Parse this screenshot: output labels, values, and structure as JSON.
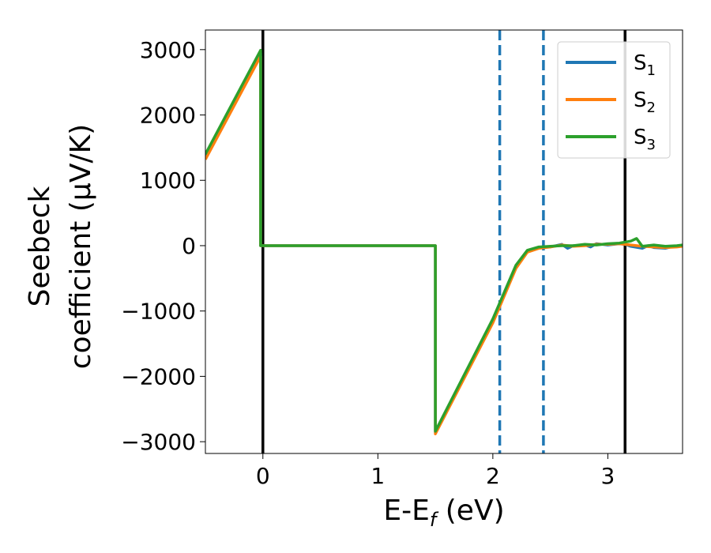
{
  "chart_data": {
    "type": "line",
    "title": "",
    "xlabel": "E-Ef (eV)",
    "xlabel_main": "E-E",
    "xlabel_sub": "f",
    "xlabel_unit": " (eV)",
    "ylabel": "Seebeck coefficient (μV/K)",
    "ylabel_line1": "Seebeck",
    "ylabel_line2": "coefficient  (μV/K)",
    "xlim": [
      -0.5,
      3.65
    ],
    "ylim": [
      -3180,
      3300
    ],
    "xticks": [
      0,
      1,
      2,
      3
    ],
    "xtick_labels": [
      "0",
      "1",
      "2",
      "3"
    ],
    "yticks": [
      3000,
      2000,
      1000,
      0,
      -1000,
      -2000,
      -3000
    ],
    "ytick_labels": [
      "3000",
      "2000",
      "1000",
      "0",
      "−1000",
      "−2000",
      "−3000"
    ],
    "grid": false,
    "legend_position": "top-right",
    "vlines": [
      {
        "x": 0.0,
        "style": "solid",
        "color": "#000000"
      },
      {
        "x": 3.15,
        "style": "solid",
        "color": "#000000"
      },
      {
        "x": 2.06,
        "style": "dashed",
        "color": "#1f77b4"
      },
      {
        "x": 2.44,
        "style": "dashed",
        "color": "#1f77b4"
      }
    ],
    "series": [
      {
        "name": "S1",
        "legend_main": "S",
        "legend_sub": "1",
        "color": "#1f77b4",
        "points": [
          [
            -0.5,
            1360
          ],
          [
            -0.02,
            2950
          ],
          [
            -0.02,
            0
          ],
          [
            1.5,
            0
          ],
          [
            1.5,
            -2860
          ],
          [
            2.0,
            -1150
          ],
          [
            2.2,
            -330
          ],
          [
            2.3,
            -90
          ],
          [
            2.4,
            -30
          ],
          [
            2.5,
            -20
          ],
          [
            2.6,
            20
          ],
          [
            2.65,
            -40
          ],
          [
            2.7,
            0
          ],
          [
            2.8,
            10
          ],
          [
            2.85,
            -20
          ],
          [
            2.9,
            30
          ],
          [
            3.0,
            10
          ],
          [
            3.1,
            30
          ],
          [
            3.15,
            20
          ],
          [
            3.2,
            -10
          ],
          [
            3.3,
            -40
          ],
          [
            3.35,
            0
          ],
          [
            3.4,
            -30
          ],
          [
            3.5,
            -40
          ],
          [
            3.55,
            -20
          ],
          [
            3.6,
            -10
          ],
          [
            3.65,
            -10
          ]
        ]
      },
      {
        "name": "S2",
        "legend_main": "S",
        "legend_sub": "2",
        "color": "#ff7f0e",
        "points": [
          [
            -0.5,
            1320
          ],
          [
            -0.02,
            2900
          ],
          [
            -0.02,
            0
          ],
          [
            1.5,
            0
          ],
          [
            1.5,
            -2880
          ],
          [
            2.0,
            -1180
          ],
          [
            2.2,
            -350
          ],
          [
            2.3,
            -100
          ],
          [
            2.4,
            -40
          ],
          [
            2.5,
            -20
          ],
          [
            2.6,
            10
          ],
          [
            2.7,
            -10
          ],
          [
            2.8,
            0
          ],
          [
            2.9,
            20
          ],
          [
            3.0,
            20
          ],
          [
            3.1,
            30
          ],
          [
            3.2,
            10
          ],
          [
            3.3,
            -10
          ],
          [
            3.4,
            -20
          ],
          [
            3.5,
            -30
          ],
          [
            3.6,
            -20
          ],
          [
            3.65,
            -10
          ]
        ]
      },
      {
        "name": "S3",
        "legend_main": "S",
        "legend_sub": "3",
        "color": "#2ca02c",
        "points": [
          [
            -0.5,
            1400
          ],
          [
            -0.02,
            2990
          ],
          [
            -0.02,
            0
          ],
          [
            1.5,
            0
          ],
          [
            1.5,
            -2840
          ],
          [
            2.0,
            -1120
          ],
          [
            2.2,
            -300
          ],
          [
            2.3,
            -70
          ],
          [
            2.4,
            -20
          ],
          [
            2.5,
            -10
          ],
          [
            2.6,
            0
          ],
          [
            2.7,
            0
          ],
          [
            2.8,
            20
          ],
          [
            2.9,
            10
          ],
          [
            3.0,
            30
          ],
          [
            3.1,
            40
          ],
          [
            3.2,
            70
          ],
          [
            3.25,
            110
          ],
          [
            3.3,
            -10
          ],
          [
            3.4,
            10
          ],
          [
            3.5,
            -10
          ],
          [
            3.6,
            0
          ],
          [
            3.65,
            10
          ]
        ]
      }
    ]
  }
}
